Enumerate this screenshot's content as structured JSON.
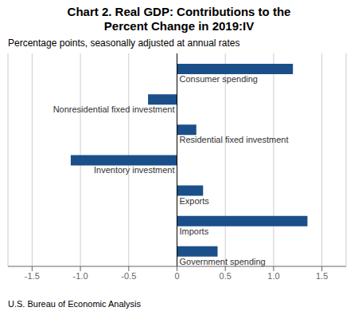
{
  "chart_data": {
    "type": "bar",
    "orientation": "horizontal",
    "title": "Chart 2. Real GDP: Contributions to the\nPercent Change in 2019:IV",
    "subtitle": "Percentage points, seasonally adjusted at annual rates",
    "annotations": [
      "U.S. Bureau of Economic Analysis"
    ],
    "categories": [
      "Consumer spending",
      "Nonresidential fixed investment",
      "Residential fixed investment",
      "Inventory investment",
      "Exports",
      "Imports",
      "Government spending"
    ],
    "values": [
      1.2,
      -0.3,
      0.2,
      -1.1,
      0.27,
      1.35,
      0.42
    ],
    "color": "#1a4f8a",
    "xlim": [
      -1.75,
      1.75
    ],
    "xticks": [
      -1.5,
      {
        "value": -1.0,
        "label": "-1.0"
      },
      -0.5,
      0,
      0.5,
      {
        "value": 1.0,
        "label": "1.0"
      },
      1.5
    ],
    "grid": true
  }
}
